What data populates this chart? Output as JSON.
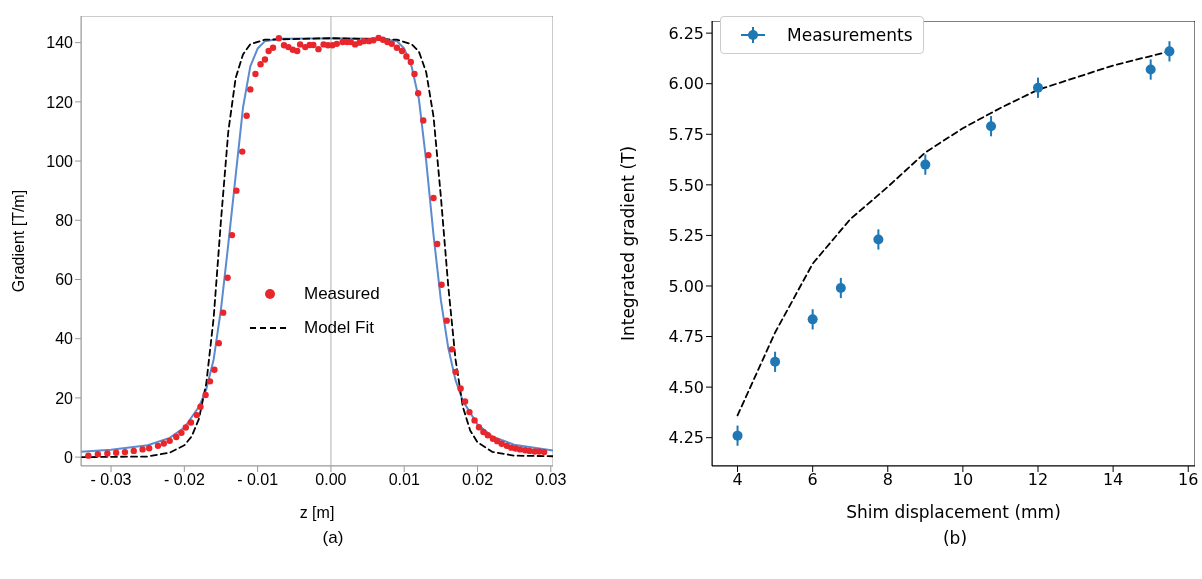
{
  "chart_data": [
    {
      "type": "scatter",
      "xlabel": "z [m]",
      "ylabel": "Gradient [T/m]",
      "xlim": [
        -0.0341,
        0.0303
      ],
      "ylim": [
        -3,
        149
      ],
      "xticks": [
        {
          "value": -0.03,
          "label": "- 0.03"
        },
        {
          "value": -0.02,
          "label": "- 0.02"
        },
        {
          "value": -0.01,
          "label": "- 0.01"
        },
        {
          "value": 0,
          "label": "0.00"
        },
        {
          "value": 0.01,
          "label": "0.01"
        },
        {
          "value": 0.02,
          "label": "0.02"
        },
        {
          "value": 0.03,
          "label": "0.03"
        }
      ],
      "yticks": [
        0,
        20,
        40,
        60,
        80,
        100,
        120,
        140
      ],
      "grid": false,
      "legend": "center",
      "ref_lines": [
        {
          "axis": "x",
          "value": 0,
          "color": "#b0b0b0"
        }
      ],
      "annotations": [
        "(a)"
      ],
      "series": [
        {
          "name": "Measured",
          "type": "scatter",
          "marker": "circle",
          "color": "#e8262b",
          "x": [
            -0.0331,
            -0.0318,
            -0.0305,
            -0.0293,
            -0.0281,
            -0.0269,
            -0.0257,
            -0.0248,
            -0.0236,
            -0.0228,
            -0.022,
            -0.0211,
            -0.0204,
            -0.0198,
            -0.0191,
            -0.0183,
            -0.0178,
            -0.0171,
            -0.0165,
            -0.0159,
            -0.0153,
            -0.0147,
            -0.0141,
            -0.0135,
            -0.0129,
            -0.0121,
            -0.0115,
            -0.011,
            -0.0103,
            -0.0096,
            -0.009,
            -0.0085,
            -0.0079,
            -0.0071,
            -0.0064,
            -0.0058,
            -0.0052,
            -0.0046,
            -0.0042,
            -0.0035,
            -0.0029,
            -0.0024,
            -0.0017,
            -0.001,
            -0.0004,
            0.0002,
            0.0008,
            0.0016,
            0.0022,
            0.0027,
            0.0033,
            0.0039,
            0.0045,
            0.0052,
            0.0058,
            0.0065,
            0.0071,
            0.0077,
            0.0083,
            0.009,
            0.0097,
            0.0103,
            0.0109,
            0.0114,
            0.0119,
            0.0126,
            0.0133,
            0.014,
            0.0145,
            0.0151,
            0.0158,
            0.0165,
            0.017,
            0.0177,
            0.0183,
            0.0189,
            0.0196,
            0.0202,
            0.0208,
            0.0214,
            0.0221,
            0.0227,
            0.0233,
            0.024,
            0.0246,
            0.0252,
            0.0258,
            0.0265,
            0.0271,
            0.0278,
            0.0284,
            0.0291
          ],
          "values": [
            0.5,
            1,
            1.2,
            1.5,
            1.7,
            2.1,
            2.6,
            3,
            3.8,
            4.6,
            5.5,
            6.8,
            8.2,
            10,
            11.7,
            14.2,
            17,
            21,
            25.6,
            29.5,
            38.5,
            48.8,
            60.6,
            75,
            90,
            103.2,
            115.3,
            124.2,
            129.4,
            132.7,
            134.3,
            137.2,
            138.3,
            141.5,
            139.1,
            138.5,
            137.6,
            137.2,
            139.4,
            138.5,
            139.2,
            139.2,
            137.8,
            139.4,
            139.1,
            139.1,
            139.6,
            140.2,
            140.2,
            140.2,
            139.4,
            140,
            140.5,
            140.5,
            140.8,
            141.6,
            141,
            140.2,
            139.6,
            138.3,
            137.2,
            135.3,
            133.5,
            129.4,
            122.9,
            113.7,
            102,
            87.5,
            72,
            58.2,
            46.1,
            36.4,
            28.8,
            23.2,
            18.8,
            15.2,
            12.4,
            10.1,
            8.5,
            7.4,
            6.2,
            5.4,
            4.5,
            3.8,
            3.2,
            2.9,
            2.6,
            2.3,
            2.1,
            1.9,
            1.9,
            1.7
          ]
        },
        {
          "type": "line",
          "color": "#5b8bd0",
          "x": [
            -0.0341,
            -0.03,
            -0.025,
            -0.022,
            -0.02,
            -0.018,
            -0.017,
            -0.016,
            -0.015,
            -0.014,
            -0.013,
            -0.012,
            -0.011,
            -0.01,
            -0.009,
            -0.007,
            0,
            0.007,
            0.009,
            0.01,
            0.011,
            0.012,
            0.013,
            0.014,
            0.015,
            0.016,
            0.017,
            0.018,
            0.02,
            0.022,
            0.025,
            0.0303
          ],
          "values": [
            1.8,
            2.5,
            4,
            6.5,
            10,
            17,
            23,
            33,
            50,
            72,
            95,
            118,
            132,
            138,
            140.5,
            141.3,
            141.5,
            141.3,
            140.5,
            138,
            132,
            121,
            100,
            75,
            53,
            37,
            26,
            19,
            11,
            7,
            4.2,
            2.2
          ]
        },
        {
          "name": "Model Fit",
          "type": "line",
          "line_style": "dashed",
          "color": "#000000",
          "x": [
            -0.0341,
            -0.025,
            -0.022,
            -0.02,
            -0.019,
            -0.018,
            -0.017,
            -0.016,
            -0.015,
            -0.014,
            -0.013,
            -0.012,
            -0.011,
            -0.009,
            0,
            0.009,
            0.011,
            0.012,
            0.013,
            0.014,
            0.015,
            0.016,
            0.017,
            0.018,
            0.019,
            0.02,
            0.022,
            0.025,
            0.0303
          ],
          "values": [
            0,
            0.2,
            1.5,
            4,
            7,
            13,
            25,
            47,
            80,
            110,
            128,
            136,
            139.5,
            141,
            141.5,
            141,
            139.5,
            137,
            130,
            115,
            88,
            58,
            33,
            17,
            9,
            5,
            1.8,
            0.5,
            0.3
          ]
        }
      ]
    },
    {
      "type": "scatter",
      "xlabel": "Shim displacement (mm)",
      "ylabel": "Integrated gradient (T)",
      "xlim": [
        3.32,
        16.18
      ],
      "ylim": [
        4.11,
        6.31
      ],
      "xticks": [
        4,
        6,
        8,
        10,
        12,
        14,
        16
      ],
      "yticks": [
        4.25,
        {
          "value": 4.5,
          "label": "4.50"
        },
        4.75,
        {
          "value": 5,
          "label": "5.00"
        },
        5.25,
        {
          "value": 5.5,
          "label": "5.50"
        },
        5.75,
        {
          "value": 6,
          "label": "6.00"
        },
        6.25
      ],
      "grid": false,
      "legend": "top left",
      "annotations": [
        "(b)"
      ],
      "series": [
        {
          "type": "line",
          "line_style": "dashed",
          "color": "#000000",
          "x": [
            4,
            5,
            6,
            7,
            8,
            9,
            10,
            11,
            12,
            13,
            14,
            15.5
          ],
          "values": [
            4.36,
            4.77,
            5.11,
            5.33,
            5.49,
            5.66,
            5.78,
            5.88,
            5.97,
            6.03,
            6.09,
            6.16
          ]
        },
        {
          "name": "Measurements",
          "type": "scatter",
          "marker": "circle",
          "color": "#1f77b4",
          "x": [
            4,
            5,
            6,
            6.75,
            7.75,
            9,
            10.75,
            12,
            15,
            15.5
          ],
          "values": [
            4.26,
            4.625,
            4.835,
            4.99,
            5.23,
            5.6,
            5.79,
            5.98,
            6.07,
            6.16
          ],
          "errors": [
            0.05,
            0.05,
            0.05,
            0.05,
            0.05,
            0.05,
            0.05,
            0.05,
            0.05,
            0.05
          ]
        }
      ]
    }
  ]
}
